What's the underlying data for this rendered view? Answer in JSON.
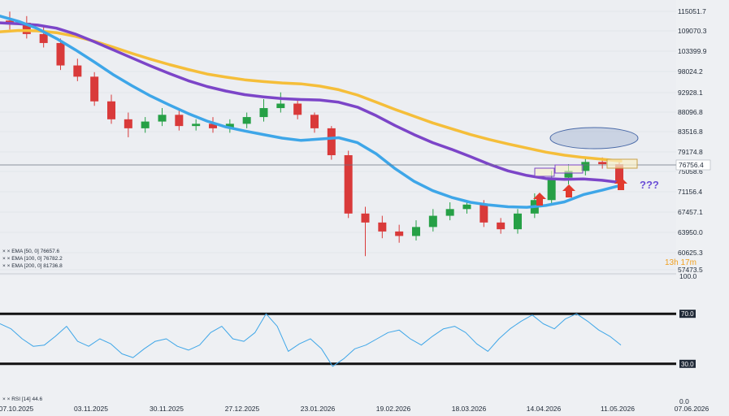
{
  "chart_data": [
    {
      "type": "candlestick",
      "title": "",
      "ylim": [
        57473.5,
        115051.7
      ],
      "y_ticks": [
        "115051.7",
        "109070.3",
        "103399.9",
        "98024.2",
        "92928.1",
        "88096.8",
        "83516.8",
        "79174.8",
        "75058.6",
        "71156.4",
        "67457.1",
        "63950.0",
        "60625.3",
        "57473.5"
      ],
      "x_ticks": [
        "07.10.2025",
        "03.11.2025",
        "30.11.2025",
        "27.12.2025",
        "23.01.2026",
        "19.02.2026",
        "18.03.2026",
        "14.04.2026",
        "11.05.2026",
        "07.06.2026"
      ],
      "current_price": "76756.4",
      "countdown": "13h 17m",
      "annotation_text": "???",
      "series": [
        {
          "name": "EMA [50, 0] 76657.6",
          "color": "#3ea6e8",
          "values": [
            114000,
            112800,
            111200,
            109000,
            106500,
            103800,
            101000,
            98500,
            96200,
            94200,
            92300,
            90600,
            89300,
            88400,
            87600,
            86800,
            86300,
            86600,
            86900,
            85800,
            83300,
            80000,
            77200,
            75100,
            73600,
            72500,
            71900,
            71500,
            71400,
            71800,
            72600,
            74200,
            75200,
            76300
          ]
        },
        {
          "name": "EMA [100, 0] 76782.2",
          "color": "#7c45c8",
          "values": [
            112500,
            112300,
            112000,
            111300,
            110000,
            108300,
            106500,
            104700,
            102900,
            101200,
            99600,
            98300,
            97300,
            96500,
            96000,
            95600,
            95400,
            95300,
            94800,
            93700,
            91800,
            89600,
            87600,
            85800,
            84300,
            82700,
            81000,
            79500,
            78500,
            77800,
            77600,
            77700,
            77400,
            76900
          ]
        },
        {
          "name": "EMA [200, 0] 81736.8",
          "color": "#f5be3a",
          "values": [
            110500,
            110800,
            110700,
            110300,
            109500,
            108400,
            107100,
            105700,
            104400,
            103200,
            102100,
            101100,
            100400,
            99800,
            99400,
            99100,
            98900,
            98400,
            97600,
            96400,
            94800,
            93200,
            91700,
            90200,
            88900,
            87600,
            86500,
            85500,
            84600,
            83700,
            83000,
            82500,
            82100,
            81700
          ]
        }
      ],
      "candles": {
        "open": [
          113000,
          112500,
          110000,
          108000,
          103000,
          100500,
          95000,
          91000,
          89000,
          90500,
          92000,
          89500,
          90000,
          89000,
          90000,
          91500,
          93500,
          94500,
          92000,
          89000,
          83000,
          70000,
          68000,
          66000,
          65000,
          67000,
          69500,
          71000,
          72000,
          68000,
          66500,
          70000,
          73000,
          78000,
          79500,
          81500,
          81000
        ],
        "close": [
          112500,
          110000,
          108000,
          103000,
          100500,
          95000,
          91000,
          89000,
          90500,
          92000,
          89500,
          90000,
          89000,
          90000,
          91500,
          93500,
          94500,
          92000,
          89000,
          83000,
          70000,
          68000,
          66000,
          65000,
          67000,
          69500,
          71000,
          72000,
          68000,
          66500,
          70000,
          73000,
          78000,
          79500,
          81500,
          81000,
          77000
        ],
        "high": [
          115000,
          114000,
          112000,
          109000,
          104500,
          101500,
          96500,
          92500,
          91500,
          93500,
          93500,
          91000,
          91500,
          91000,
          92500,
          95500,
          97000,
          95500,
          92500,
          89500,
          84000,
          71500,
          69500,
          67500,
          68500,
          71000,
          72500,
          73000,
          73000,
          69000,
          71000,
          74500,
          79500,
          81000,
          82500,
          82500,
          82000
        ],
        "low": [
          111000,
          109000,
          107000,
          102000,
          99500,
          94000,
          90000,
          87000,
          88000,
          89500,
          88500,
          88500,
          88000,
          88000,
          89000,
          90500,
          92500,
          91000,
          88000,
          82000,
          69000,
          60500,
          64500,
          63500,
          64000,
          66000,
          68500,
          70000,
          67000,
          65500,
          65500,
          69000,
          72000,
          76500,
          78500,
          80000,
          76000
        ]
      }
    },
    {
      "type": "line",
      "title": "",
      "ylim": [
        0,
        100
      ],
      "y_ticks": [
        "100.0",
        "70.0",
        "30.0",
        "0.0"
      ],
      "levels": [
        "70.0",
        "30.0"
      ],
      "series": [
        {
          "name": "RSI [14] 44.6",
          "color": "#3ea6e8",
          "values": [
            62,
            58,
            50,
            44,
            45,
            52,
            60,
            48,
            44,
            50,
            46,
            38,
            35,
            42,
            48,
            50,
            44,
            41,
            45,
            55,
            60,
            50,
            48,
            55,
            70,
            60,
            40,
            46,
            50,
            42,
            28,
            34,
            42,
            45,
            50,
            55,
            57,
            50,
            45,
            52,
            58,
            60,
            55,
            46,
            40,
            50,
            58,
            64,
            69,
            62,
            58,
            66,
            70,
            64,
            57,
            52,
            45
          ]
        }
      ]
    }
  ],
  "header": {
    "legend_prefix": "× ×"
  }
}
